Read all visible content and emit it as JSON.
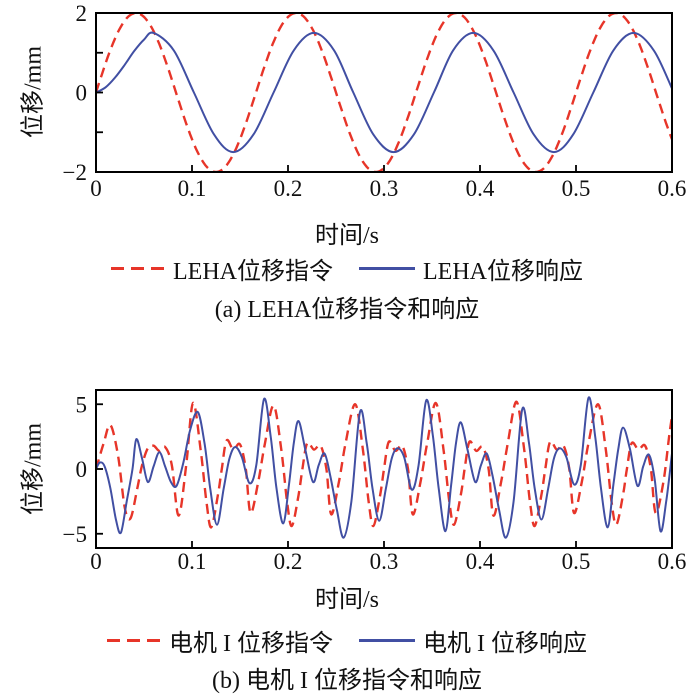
{
  "chart_data": [
    {
      "type": "line",
      "title": "",
      "caption": "(a) LEHA位移指令和响应",
      "xlabel": "时间/s",
      "ylabel": "位移/mm",
      "xlim": [
        0,
        0.6
      ],
      "ylim": [
        -2,
        2
      ],
      "xticks": [
        0,
        0.1,
        0.2,
        0.3,
        0.4,
        0.5,
        0.6
      ],
      "xtick_labels": [
        "0",
        "0.1",
        "0.2",
        "0.3",
        "0.4",
        "0.5",
        "0.6"
      ],
      "yticks": [
        -2,
        -1,
        0,
        1,
        2
      ],
      "ytick_labels": [
        "−2",
        "",
        "0",
        "",
        "2"
      ],
      "grid": false,
      "legend_position": "below",
      "series": [
        {
          "name": "LEHA位移指令",
          "style": "dashed",
          "color": "#e73529",
          "model": "sine",
          "amplitude_mm": 2,
          "frequency_hz": 6,
          "phase_rad": 0
        },
        {
          "name": "LEHA位移响应",
          "style": "solid",
          "color": "#414fa3",
          "points": [
            [
              0,
              0
            ],
            [
              0.01,
              0.13
            ],
            [
              0.02,
              0.38
            ],
            [
              0.03,
              0.7
            ],
            [
              0.04,
              1.05
            ],
            [
              0.05,
              1.33
            ],
            [
              0.06,
              1.5
            ],
            [
              0.081,
              1.06
            ],
            [
              0.102,
              0
            ],
            [
              0.123,
              -1.06
            ],
            [
              0.143,
              -1.5
            ],
            [
              0.164,
              -1.06
            ],
            [
              0.185,
              0
            ],
            [
              0.206,
              1.06
            ],
            [
              0.227,
              1.5
            ],
            [
              0.248,
              1.06
            ],
            [
              0.268,
              0
            ],
            [
              0.289,
              -1.06
            ],
            [
              0.31,
              -1.5
            ],
            [
              0.331,
              -1.06
            ],
            [
              0.352,
              0
            ],
            [
              0.372,
              1.06
            ],
            [
              0.393,
              1.5
            ],
            [
              0.414,
              1.06
            ],
            [
              0.435,
              0
            ],
            [
              0.456,
              -1.06
            ],
            [
              0.477,
              -1.5
            ],
            [
              0.497,
              -1.06
            ],
            [
              0.518,
              0
            ],
            [
              0.539,
              1.06
            ],
            [
              0.56,
              1.5
            ],
            [
              0.581,
              1.06
            ],
            [
              0.6,
              0.1
            ]
          ]
        }
      ]
    },
    {
      "type": "line",
      "title": "",
      "caption": "(b) 电机 I 位移指令和响应",
      "xlabel": "时间/s",
      "ylabel": "位移/mm",
      "xlim": [
        0,
        0.6
      ],
      "ylim": [
        -6.1,
        6.1
      ],
      "xticks": [
        0,
        0.1,
        0.2,
        0.3,
        0.4,
        0.5,
        0.6
      ],
      "xtick_labels": [
        "0",
        "0.1",
        "0.2",
        "0.3",
        "0.4",
        "0.5",
        "0.6"
      ],
      "yticks": [
        -5,
        0,
        5
      ],
      "ytick_labels": [
        "−5",
        "0",
        "5"
      ],
      "grid": false,
      "legend_position": "below",
      "series": [
        {
          "name": "电机 I 位移指令",
          "style": "dashed",
          "color": "#e73529",
          "points": [
            [
              0,
              0
            ],
            [
              0.008,
              2
            ],
            [
              0.015,
              3.4
            ],
            [
              0.023,
              1
            ],
            [
              0.03,
              -3
            ],
            [
              0.036,
              -3.8
            ],
            [
              0.043,
              -1.5
            ],
            [
              0.048,
              0.3
            ],
            [
              0.054,
              1.6
            ],
            [
              0.06,
              1.8
            ],
            [
              0.066,
              1.4
            ],
            [
              0.072,
              1.7
            ],
            [
              0.079,
              0.3
            ],
            [
              0.086,
              -3.6
            ],
            [
              0.094,
              0.3
            ],
            [
              0.101,
              5.1
            ],
            [
              0.109,
              1.5
            ],
            [
              0.115,
              -2.5
            ],
            [
              0.12,
              -4.5
            ],
            [
              0.127,
              -2
            ],
            [
              0.131,
              0
            ],
            [
              0.136,
              2.2
            ],
            [
              0.143,
              1.5
            ],
            [
              0.15,
              1.9
            ],
            [
              0.156,
              0
            ],
            [
              0.161,
              -3.4
            ],
            [
              0.169,
              -1
            ],
            [
              0.176,
              2
            ],
            [
              0.185,
              4.9
            ],
            [
              0.193,
              1.5
            ],
            [
              0.199,
              -2.5
            ],
            [
              0.204,
              -4.4
            ],
            [
              0.211,
              -2
            ],
            [
              0.215,
              0
            ],
            [
              0.22,
              2
            ],
            [
              0.227,
              1.5
            ],
            [
              0.234,
              1.8
            ],
            [
              0.24,
              0
            ],
            [
              0.245,
              -3.5
            ],
            [
              0.253,
              -1
            ],
            [
              0.26,
              2
            ],
            [
              0.27,
              5
            ],
            [
              0.278,
              1.5
            ],
            [
              0.284,
              -2.5
            ],
            [
              0.289,
              -4.4
            ],
            [
              0.296,
              -2
            ],
            [
              0.3,
              0
            ],
            [
              0.305,
              2.1
            ],
            [
              0.312,
              1.4
            ],
            [
              0.319,
              1.8
            ],
            [
              0.325,
              0
            ],
            [
              0.33,
              -3.5
            ],
            [
              0.338,
              -1
            ],
            [
              0.345,
              2
            ],
            [
              0.354,
              5.1
            ],
            [
              0.362,
              1.5
            ],
            [
              0.368,
              -2.5
            ],
            [
              0.373,
              -4.3
            ],
            [
              0.38,
              -2
            ],
            [
              0.384,
              0
            ],
            [
              0.389,
              2.1
            ],
            [
              0.396,
              1.4
            ],
            [
              0.403,
              1.7
            ],
            [
              0.409,
              0
            ],
            [
              0.414,
              -3.6
            ],
            [
              0.422,
              -1
            ],
            [
              0.429,
              2
            ],
            [
              0.438,
              5.2
            ],
            [
              0.446,
              1.5
            ],
            [
              0.452,
              -2.5
            ],
            [
              0.457,
              -4.4
            ],
            [
              0.464,
              -2
            ],
            [
              0.468,
              0
            ],
            [
              0.473,
              2.1
            ],
            [
              0.48,
              1.5
            ],
            [
              0.487,
              1.8
            ],
            [
              0.493,
              0
            ],
            [
              0.498,
              -3.4
            ],
            [
              0.506,
              -1
            ],
            [
              0.513,
              2
            ],
            [
              0.523,
              5
            ],
            [
              0.531,
              1.5
            ],
            [
              0.537,
              -2.5
            ],
            [
              0.542,
              -4.3
            ],
            [
              0.549,
              -2
            ],
            [
              0.553,
              0
            ],
            [
              0.558,
              2
            ],
            [
              0.565,
              1.5
            ],
            [
              0.572,
              1.8
            ],
            [
              0.578,
              0
            ],
            [
              0.583,
              -3.4
            ],
            [
              0.591,
              -1
            ],
            [
              0.597,
              2.5
            ],
            [
              0.6,
              4.1
            ]
          ]
        },
        {
          "name": "电机 I 位移响应",
          "style": "solid",
          "color": "#414fa3",
          "points": [
            [
              0,
              0
            ],
            [
              0.004,
              0.5
            ],
            [
              0.009,
              0.2
            ],
            [
              0.015,
              -1.5
            ],
            [
              0.021,
              -4
            ],
            [
              0.026,
              -4.9
            ],
            [
              0.032,
              -2.5
            ],
            [
              0.038,
              0
            ],
            [
              0.042,
              2.3
            ],
            [
              0.048,
              0.8
            ],
            [
              0.054,
              -1
            ],
            [
              0.06,
              0.2
            ],
            [
              0.066,
              1.3
            ],
            [
              0.072,
              0.2
            ],
            [
              0.078,
              -1
            ],
            [
              0.084,
              -1.3
            ],
            [
              0.091,
              0.5
            ],
            [
              0.098,
              3
            ],
            [
              0.106,
              4.4
            ],
            [
              0.113,
              2
            ],
            [
              0.119,
              -1.5
            ],
            [
              0.126,
              -4.3
            ],
            [
              0.133,
              -1.5
            ],
            [
              0.139,
              0.8
            ],
            [
              0.145,
              1.7
            ],
            [
              0.152,
              0.9
            ],
            [
              0.16,
              -1.1
            ],
            [
              0.167,
              0.3
            ],
            [
              0.175,
              5.4
            ],
            [
              0.182,
              2.5
            ],
            [
              0.188,
              -1.5
            ],
            [
              0.195,
              -4.2
            ],
            [
              0.201,
              -1.2
            ],
            [
              0.206,
              2
            ],
            [
              0.211,
              3.7
            ],
            [
              0.218,
              1.5
            ],
            [
              0.226,
              -1
            ],
            [
              0.232,
              0.3
            ],
            [
              0.238,
              1.2
            ],
            [
              0.244,
              -0.5
            ],
            [
              0.251,
              -3.2
            ],
            [
              0.258,
              -5.3
            ],
            [
              0.266,
              -2.5
            ],
            [
              0.275,
              4.4
            ],
            [
              0.282,
              2
            ],
            [
              0.288,
              -1.5
            ],
            [
              0.295,
              -4
            ],
            [
              0.302,
              -1.5
            ],
            [
              0.308,
              0.8
            ],
            [
              0.314,
              1.6
            ],
            [
              0.321,
              0.9
            ],
            [
              0.329,
              -1.6
            ],
            [
              0.336,
              0.3
            ],
            [
              0.344,
              5.3
            ],
            [
              0.351,
              2.5
            ],
            [
              0.357,
              -1.5
            ],
            [
              0.364,
              -4.8
            ],
            [
              0.37,
              -1.2
            ],
            [
              0.375,
              2
            ],
            [
              0.38,
              3.6
            ],
            [
              0.387,
              1.5
            ],
            [
              0.395,
              -1
            ],
            [
              0.401,
              0.3
            ],
            [
              0.407,
              1.2
            ],
            [
              0.413,
              -0.5
            ],
            [
              0.42,
              -3.2
            ],
            [
              0.427,
              -5.3
            ],
            [
              0.435,
              -2.5
            ],
            [
              0.444,
              4.6
            ],
            [
              0.451,
              2
            ],
            [
              0.457,
              -1.5
            ],
            [
              0.464,
              -3.9
            ],
            [
              0.471,
              -1.5
            ],
            [
              0.477,
              0.8
            ],
            [
              0.483,
              1.6
            ],
            [
              0.49,
              0.9
            ],
            [
              0.498,
              -1.2
            ],
            [
              0.505,
              0.3
            ],
            [
              0.513,
              5.5
            ],
            [
              0.52,
              2.5
            ],
            [
              0.526,
              -1.5
            ],
            [
              0.533,
              -4.5
            ],
            [
              0.539,
              -1.2
            ],
            [
              0.544,
              1.5
            ],
            [
              0.549,
              3.2
            ],
            [
              0.556,
              1.6
            ],
            [
              0.564,
              -1.3
            ],
            [
              0.57,
              0.2
            ],
            [
              0.576,
              1.1
            ],
            [
              0.582,
              -0.8
            ],
            [
              0.588,
              -4.8
            ],
            [
              0.594,
              -2.5
            ],
            [
              0.6,
              1.2
            ]
          ]
        }
      ]
    }
  ]
}
